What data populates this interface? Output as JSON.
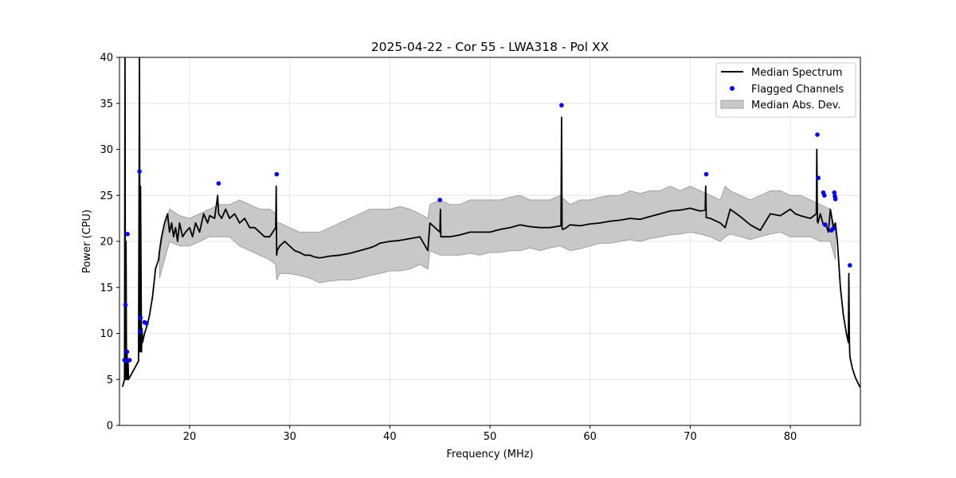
{
  "chart_data": {
    "type": "line",
    "title": "2025-04-22 - Cor 55 - LWA318 - Pol XX",
    "xlabel": "Frequency (MHz)",
    "ylabel": "Power (CPU)",
    "xlim": [
      13,
      87
    ],
    "ylim": [
      0,
      40
    ],
    "xticks": [
      20,
      30,
      40,
      50,
      60,
      70,
      80
    ],
    "yticks": [
      0,
      5,
      10,
      15,
      20,
      25,
      30,
      35,
      40
    ],
    "grid": true,
    "legend_position": "top-right",
    "legend": [
      "Median Spectrum",
      "Flagged Channels",
      "Median Abs. Dev."
    ],
    "colors": {
      "line": "#000000",
      "points": "#0000ff",
      "band": "#c8c8c8",
      "band_edge": "#a0a0a0"
    },
    "series": [
      {
        "name": "Median Spectrum",
        "x": [
          13.3,
          13.5,
          13.55,
          13.6,
          13.65,
          13.7,
          13.75,
          13.8,
          13.85,
          13.9,
          14.0,
          14.2,
          14.5,
          14.9,
          15.0,
          15.05,
          15.1,
          15.2,
          15.25,
          15.3,
          15.5,
          15.8,
          16.0,
          16.3,
          16.6,
          16.9,
          17.0,
          17.2,
          17.5,
          17.8,
          18.0,
          18.2,
          18.4,
          18.6,
          18.8,
          19.0,
          19.3,
          19.6,
          20.0,
          20.3,
          20.6,
          21.0,
          21.4,
          21.8,
          22.0,
          22.5,
          22.8,
          22.9,
          23.2,
          23.6,
          24.0,
          24.5,
          25.0,
          25.5,
          26.0,
          26.5,
          27.0,
          27.5,
          28.0,
          28.6,
          28.65,
          28.7,
          28.75,
          29.0,
          29.5,
          30.0,
          30.5,
          31.0,
          31.5,
          32.0,
          32.5,
          33.0,
          34.0,
          35.0,
          36.0,
          37.0,
          38.0,
          38.5,
          39.0,
          40.0,
          41.0,
          42.0,
          43.0,
          43.8,
          44.0,
          45.0,
          45.05,
          45.1,
          46.0,
          47.0,
          48.0,
          49.0,
          50.0,
          51.0,
          52.0,
          53.0,
          54.0,
          55.0,
          56.0,
          57.1,
          57.15,
          57.2,
          57.25,
          57.5,
          58.0,
          59.0,
          60.0,
          61.0,
          62.0,
          63.0,
          64.0,
          65.0,
          66.0,
          67.0,
          68.0,
          69.0,
          70.0,
          71.0,
          71.5,
          71.55,
          71.6,
          72.0,
          73.0,
          73.5,
          74.0,
          75.0,
          76.0,
          77.0,
          78.0,
          79.0,
          80.0,
          80.5,
          81.0,
          82.0,
          82.6,
          82.65,
          82.7,
          82.75,
          83.0,
          83.3,
          83.5,
          83.8,
          84.0,
          84.3,
          84.5,
          84.7,
          85.0,
          85.3,
          85.6,
          85.8,
          85.85,
          85.9,
          85.95,
          86.2,
          86.5,
          86.8,
          87.0
        ],
        "y": [
          4.2,
          5.0,
          40.0,
          5.0,
          20.0,
          5.0,
          8.0,
          5.0,
          7.0,
          5.0,
          5.2,
          5.6,
          6.2,
          7.0,
          40.0,
          8.0,
          26.0,
          8.0,
          10.5,
          9.0,
          10.0,
          11.0,
          12.0,
          14.0,
          17.0,
          18.0,
          19.0,
          20.5,
          22.0,
          23.0,
          21.0,
          22.0,
          20.5,
          21.5,
          20.0,
          22.0,
          20.5,
          21.0,
          21.5,
          20.5,
          22.0,
          21.0,
          23.0,
          22.0,
          22.8,
          22.5,
          25.0,
          23.0,
          22.5,
          23.5,
          22.5,
          23.0,
          22.0,
          22.5,
          21.5,
          21.5,
          21.0,
          20.5,
          20.5,
          21.5,
          26.0,
          18.5,
          19.0,
          19.5,
          20.0,
          19.5,
          19.0,
          18.8,
          18.5,
          18.5,
          18.3,
          18.2,
          18.4,
          18.5,
          18.7,
          19.0,
          19.3,
          19.5,
          19.8,
          20.0,
          20.1,
          20.3,
          20.5,
          19.0,
          22.0,
          21.0,
          23.5,
          20.5,
          20.5,
          20.7,
          21.0,
          21.0,
          21.0,
          21.3,
          21.5,
          21.8,
          21.6,
          21.5,
          21.5,
          21.7,
          33.5,
          21.5,
          21.3,
          21.4,
          21.8,
          21.7,
          21.9,
          22.0,
          22.2,
          22.3,
          22.5,
          22.4,
          22.7,
          23.0,
          23.3,
          23.4,
          23.6,
          23.3,
          23.4,
          26.0,
          22.6,
          22.5,
          22.0,
          21.5,
          23.5,
          22.7,
          21.8,
          21.2,
          23.0,
          22.8,
          23.5,
          23.0,
          22.8,
          22.5,
          23.0,
          30.0,
          22.2,
          22.0,
          23.0,
          21.8,
          22.0,
          21.0,
          23.5,
          21.5,
          22.0,
          20.0,
          15.0,
          12.0,
          10.0,
          9.0,
          16.5,
          9.0,
          7.5,
          6.2,
          5.2,
          4.5,
          4.1
        ]
      },
      {
        "name": "Flagged Channels",
        "points": [
          [
            13.5,
            7.1
          ],
          [
            13.6,
            13.1
          ],
          [
            13.7,
            7.0
          ],
          [
            13.75,
            8.0
          ],
          [
            13.8,
            20.8
          ],
          [
            14.0,
            7.1
          ],
          [
            15.0,
            27.6
          ],
          [
            15.05,
            10.2
          ],
          [
            15.1,
            11.7
          ],
          [
            15.5,
            11.2
          ],
          [
            15.7,
            11.1
          ],
          [
            22.9,
            26.3
          ],
          [
            28.7,
            27.3
          ],
          [
            45.0,
            24.5
          ],
          [
            57.15,
            34.8
          ],
          [
            71.6,
            27.3
          ],
          [
            82.7,
            31.6
          ],
          [
            82.8,
            26.9
          ],
          [
            83.3,
            25.3
          ],
          [
            83.4,
            25.0
          ],
          [
            83.5,
            21.8
          ],
          [
            84.1,
            21.2
          ],
          [
            84.3,
            21.4
          ],
          [
            84.4,
            25.3
          ],
          [
            84.45,
            24.9
          ],
          [
            84.5,
            24.6
          ],
          [
            85.95,
            17.4
          ]
        ]
      },
      {
        "name": "Median Abs. Dev.",
        "x": [
          17.0,
          18.0,
          19.0,
          20.0,
          21.0,
          22.0,
          23.0,
          24.0,
          25.0,
          26.0,
          27.0,
          28.0,
          28.6,
          28.7,
          29.0,
          30.0,
          31.0,
          32.0,
          33.0,
          34.0,
          35.0,
          36.0,
          37.0,
          38.0,
          39.0,
          40.0,
          41.0,
          42.0,
          43.0,
          43.8,
          44.0,
          45.0,
          46.0,
          47.0,
          48.0,
          49.0,
          50.0,
          51.0,
          52.0,
          53.0,
          54.0,
          55.0,
          56.0,
          57.0,
          58.0,
          59.0,
          60.0,
          61.0,
          62.0,
          63.0,
          64.0,
          65.0,
          66.0,
          67.0,
          68.0,
          69.0,
          70.0,
          71.0,
          72.0,
          73.0,
          73.5,
          74.0,
          75.0,
          76.0,
          77.0,
          78.0,
          79.0,
          80.0,
          81.0,
          82.0,
          83.0,
          84.0,
          84.5
        ],
        "upper": [
          19.0,
          23.5,
          22.8,
          22.5,
          23.0,
          23.5,
          24.0,
          24.0,
          24.5,
          24.0,
          23.5,
          23.5,
          23.0,
          22.0,
          22.0,
          21.5,
          21.0,
          21.0,
          21.0,
          21.5,
          22.0,
          22.5,
          23.0,
          23.5,
          23.5,
          23.5,
          23.8,
          23.5,
          23.0,
          22.5,
          24.0,
          24.5,
          24.0,
          24.0,
          24.5,
          24.5,
          24.5,
          24.5,
          24.8,
          25.0,
          24.5,
          24.5,
          24.5,
          25.0,
          24.0,
          24.5,
          24.5,
          24.8,
          25.0,
          25.0,
          25.5,
          25.2,
          25.5,
          25.5,
          26.0,
          25.5,
          26.0,
          25.5,
          25.0,
          24.5,
          26.0,
          25.5,
          25.0,
          24.5,
          25.0,
          25.5,
          25.5,
          25.0,
          25.0,
          24.5,
          24.0,
          23.5,
          21.0
        ],
        "lower": [
          16.0,
          20.0,
          19.5,
          19.5,
          20.0,
          20.5,
          20.5,
          20.5,
          19.5,
          19.0,
          18.5,
          18.0,
          17.5,
          15.8,
          16.5,
          16.5,
          16.3,
          16.0,
          15.5,
          15.7,
          15.8,
          15.8,
          16.0,
          16.3,
          16.5,
          16.8,
          16.8,
          17.0,
          17.5,
          17.0,
          19.0,
          18.5,
          18.5,
          18.5,
          18.7,
          18.5,
          18.8,
          18.8,
          19.0,
          19.0,
          19.3,
          19.0,
          19.3,
          19.5,
          19.0,
          19.2,
          19.5,
          19.8,
          19.8,
          20.0,
          20.2,
          20.0,
          20.3,
          20.5,
          20.7,
          20.8,
          21.0,
          20.8,
          20.5,
          20.0,
          20.5,
          20.8,
          20.5,
          20.2,
          20.5,
          20.8,
          21.0,
          20.5,
          20.5,
          20.5,
          20.0,
          20.0,
          18.0
        ]
      }
    ]
  }
}
